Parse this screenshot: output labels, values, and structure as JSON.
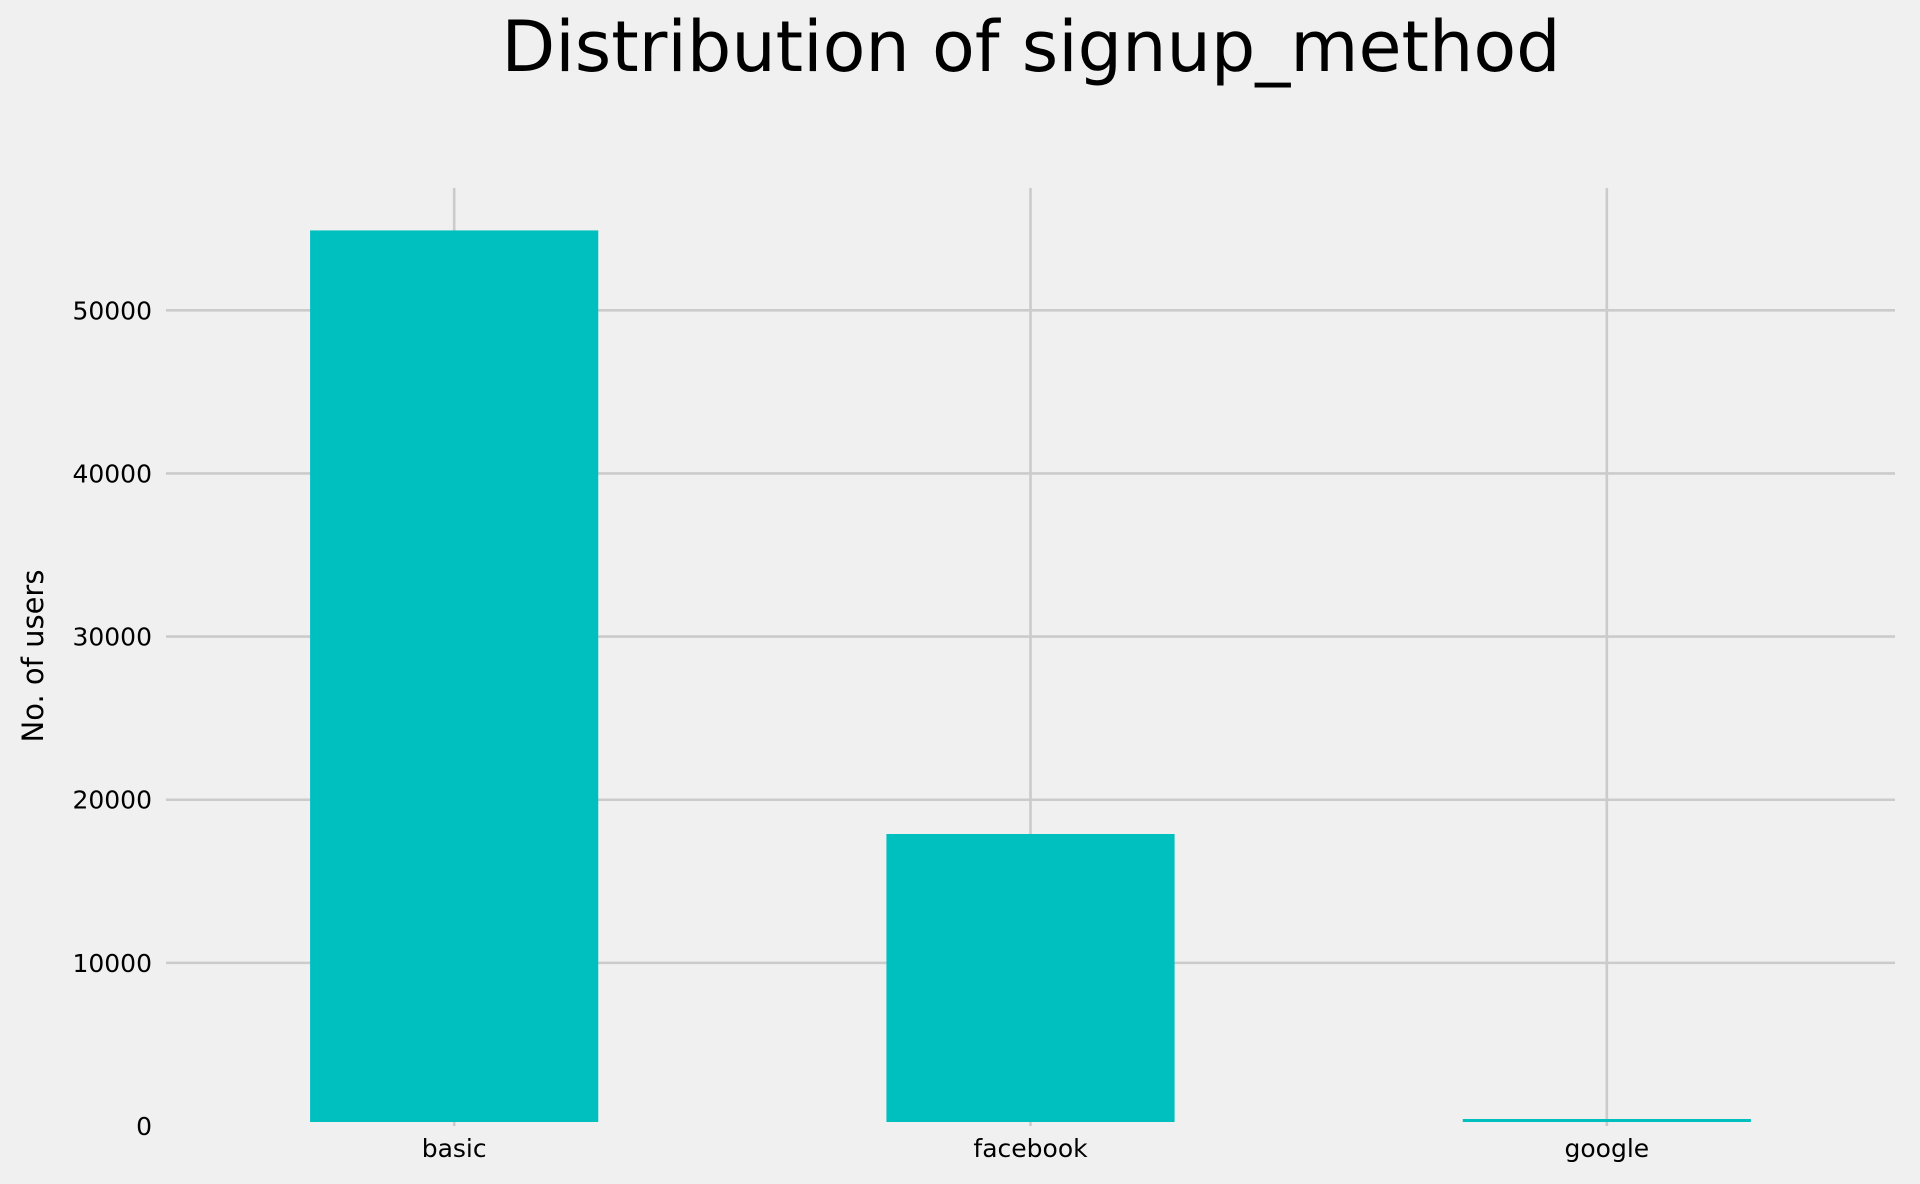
{
  "chart_data": {
    "type": "bar",
    "title": "Distribution of signup_method",
    "xlabel": "",
    "ylabel": "No. of users",
    "categories": [
      "basic",
      "facebook",
      "google"
    ],
    "values": [
      54900,
      17900,
      230
    ],
    "ylim": [
      0,
      57500
    ],
    "yticks": [
      0,
      10000,
      20000,
      30000,
      40000,
      50000
    ],
    "ytick_labels": [
      "0",
      "10000",
      "20000",
      "30000",
      "40000",
      "50000"
    ],
    "grid": true,
    "colors": {
      "bar": "#00bfbf",
      "background": "#f0f0f0",
      "grid": "#cbcbcb"
    }
  }
}
